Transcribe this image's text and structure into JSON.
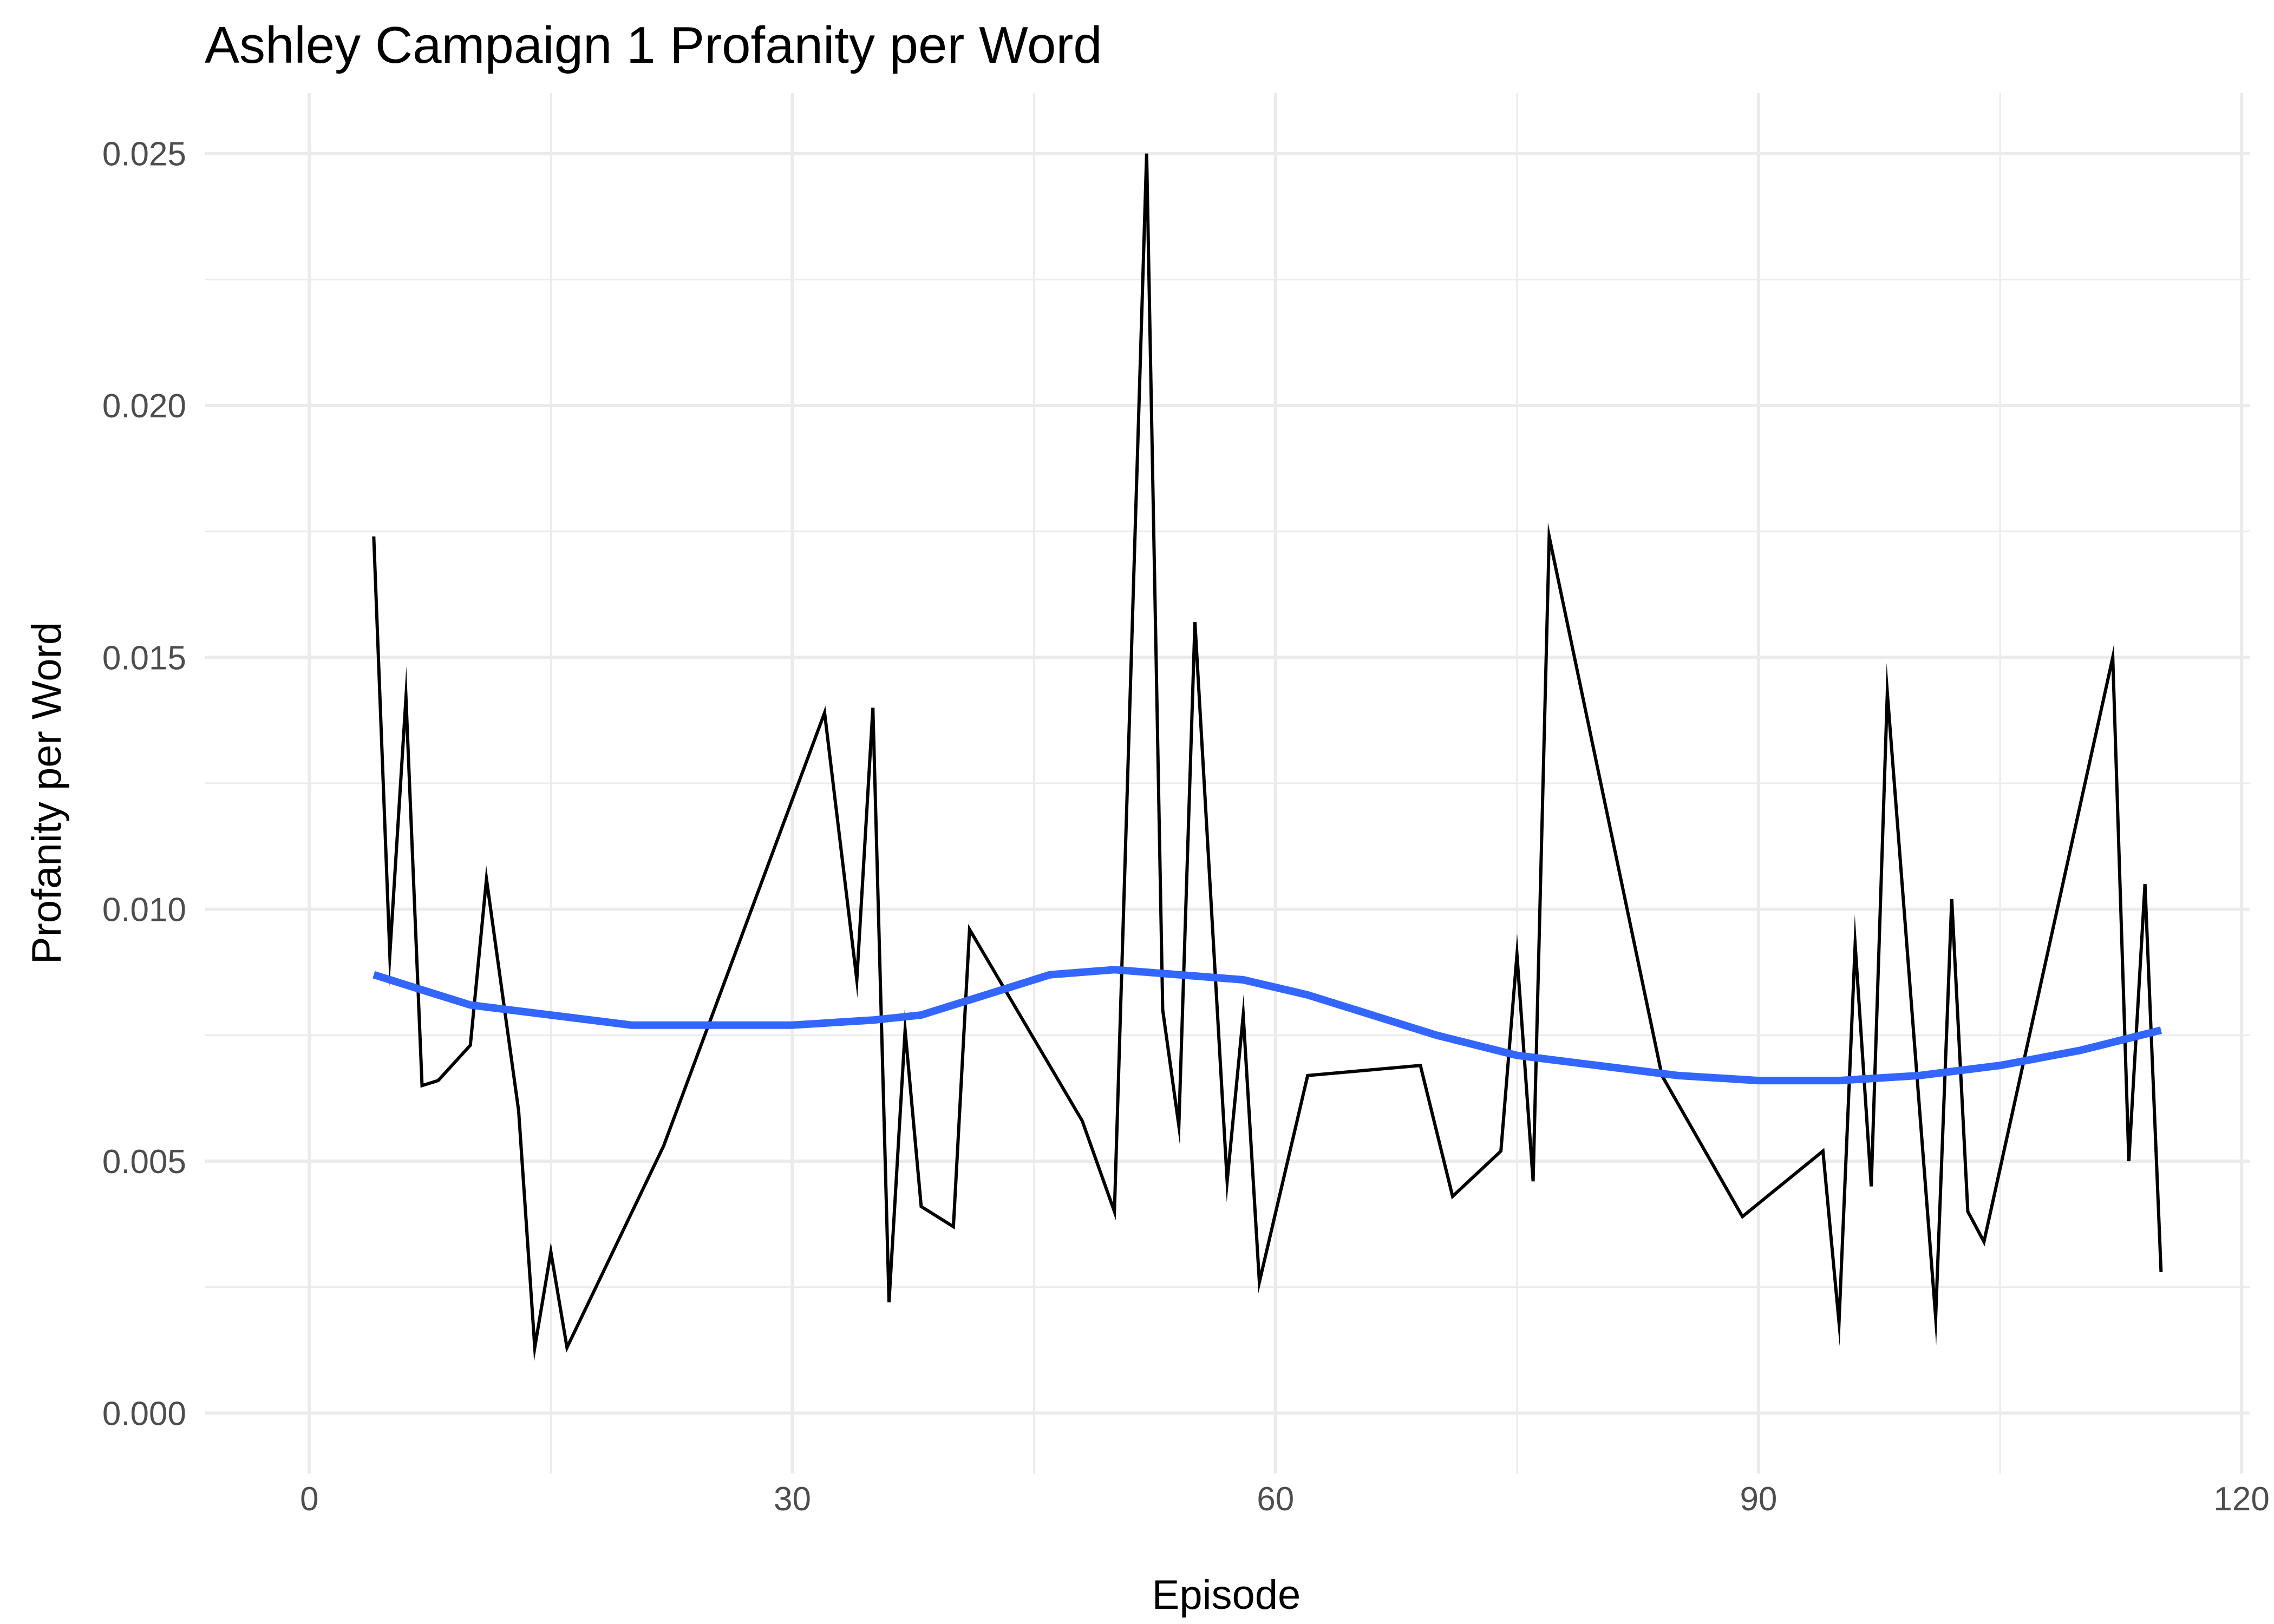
{
  "chart_data": {
    "type": "line",
    "title": "Ashley Campaign 1 Profanity per Word",
    "xlabel": "Episode",
    "ylabel": "Profanity per Word",
    "xlim": [
      -6.5,
      120.5
    ],
    "ylim": [
      -0.0012,
      0.0262
    ],
    "x_ticks": [
      0,
      30,
      60,
      90,
      120
    ],
    "x_tick_labels": [
      "0",
      "30",
      "60",
      "90",
      "120"
    ],
    "y_ticks": [
      0.0,
      0.005,
      0.01,
      0.015,
      0.02,
      0.025
    ],
    "y_tick_labels": [
      "0.000",
      "0.005",
      "0.010",
      "0.015",
      "0.020",
      "0.025"
    ],
    "grid": true,
    "legend": "none",
    "colors": {
      "line": "#000000",
      "smooth": "#3366ff",
      "grid": "#ebebeb",
      "text": "#4d4d4d"
    },
    "series": [
      {
        "kind": "line",
        "x": [
          4,
          5,
          6,
          7,
          8,
          10,
          11,
          13,
          14,
          15,
          16,
          22,
          32,
          34,
          35,
          36,
          37,
          38,
          40,
          41,
          48,
          50,
          52,
          53,
          54,
          55,
          57,
          58,
          59,
          62,
          69,
          71,
          74,
          75,
          76,
          77,
          84,
          89,
          94,
          95,
          96,
          97,
          98,
          101,
          102,
          103,
          104,
          112,
          113,
          114,
          115
        ],
        "y": [
          0.0174,
          0.0091,
          0.0142,
          0.0065,
          0.0066,
          0.0073,
          0.0106,
          0.006,
          0.0013,
          0.0032,
          0.0013,
          0.0053,
          0.0139,
          0.0086,
          0.014,
          0.0022,
          0.0076,
          0.0041,
          0.0037,
          0.0096,
          0.0058,
          0.004,
          0.025,
          0.008,
          0.0057,
          0.0157,
          0.0046,
          0.0079,
          0.0026,
          0.0067,
          0.0069,
          0.0043,
          0.0052,
          0.0091,
          0.0046,
          0.0174,
          0.0067,
          0.0039,
          0.0052,
          0.0018,
          0.0093,
          0.0045,
          0.0143,
          0.0019,
          0.0102,
          0.004,
          0.0034,
          0.015,
          0.005,
          0.0105,
          0.0028
        ]
      },
      {
        "kind": "smooth",
        "x": [
          4,
          6,
          10,
          15,
          20,
          25,
          30,
          35,
          38,
          42,
          46,
          50,
          54,
          58,
          62,
          66,
          70,
          75,
          80,
          85,
          90,
          95,
          100,
          105,
          110,
          115
        ],
        "y": [
          0.0087,
          0.0085,
          0.0081,
          0.0079,
          0.0077,
          0.0077,
          0.0077,
          0.0078,
          0.0079,
          0.0083,
          0.0087,
          0.0088,
          0.0087,
          0.0086,
          0.0083,
          0.0079,
          0.0075,
          0.0071,
          0.0069,
          0.0067,
          0.0066,
          0.0066,
          0.0067,
          0.0069,
          0.0072,
          0.0076
        ]
      }
    ]
  }
}
